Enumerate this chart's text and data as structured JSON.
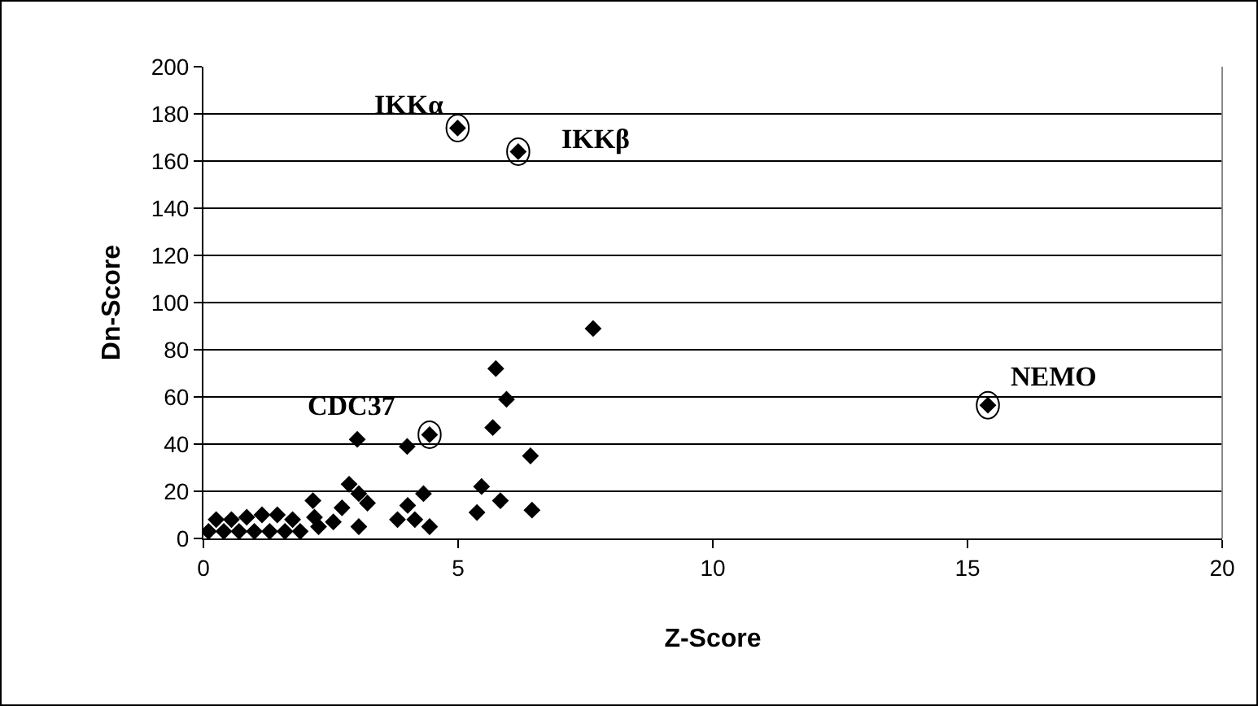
{
  "chart_data": {
    "type": "scatter",
    "xlabel": "Z-Score",
    "ylabel": "Dn-Score",
    "x": [
      0.1,
      0.4,
      0.7,
      1.0,
      1.3,
      1.6,
      1.9,
      0.25,
      0.55,
      0.85,
      1.15,
      1.45,
      1.75,
      2.15,
      2.18,
      2.26,
      2.55,
      2.72,
      2.86,
      3.05,
      3.22,
      3.05,
      3.02,
      3.81,
      4.01,
      4.15,
      4.32,
      4.44,
      4.0,
      4.44,
      5.37,
      5.46,
      5.83,
      6.45,
      6.42,
      5.68,
      5.95,
      5.74,
      7.65,
      4.99,
      6.18,
      15.4
    ],
    "values": [
      3,
      3,
      3,
      3,
      3,
      3,
      3,
      8,
      8,
      9,
      10,
      10,
      8,
      16,
      9,
      5,
      7,
      13,
      23,
      19,
      15,
      5,
      42,
      8,
      14,
      8,
      19,
      5,
      39,
      44,
      11,
      22,
      16,
      12,
      35,
      47,
      59,
      72,
      89,
      174,
      164,
      56.5
    ],
    "color": "#000000",
    "marker": "diamond",
    "grid": "y",
    "xlim": [
      0,
      20
    ],
    "xticks": [
      0,
      5,
      10,
      15,
      20
    ],
    "ylim": [
      0,
      200
    ],
    "yticks": [
      0,
      20,
      40,
      60,
      80,
      100,
      120,
      140,
      160,
      180,
      200
    ],
    "annotations": [
      {
        "text": "IKKα",
        "x": 4.99,
        "y": 174
      },
      {
        "text": "IKKβ",
        "x": 6.18,
        "y": 164
      },
      {
        "text": "CDC37",
        "x": 4.44,
        "y": 44
      },
      {
        "text": "NEMO",
        "x": 15.4,
        "y": 56.5
      }
    ]
  }
}
